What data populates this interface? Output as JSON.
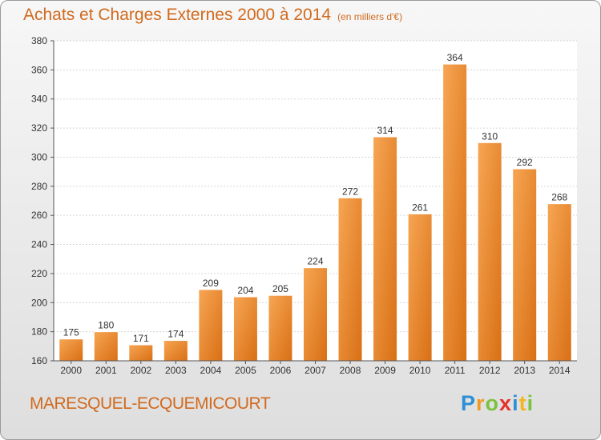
{
  "header": {
    "title": "Achats et Charges Externes 2000 à 2014",
    "unit": "(en milliers d'€)"
  },
  "footer": {
    "commune": "MARESQUEL-ECQUEMICOURT",
    "logo": [
      {
        "ch": "P",
        "color": "#2e8fd6"
      },
      {
        "ch": "r",
        "color": "#f29a1f"
      },
      {
        "ch": "o",
        "color": "#7cc242"
      },
      {
        "ch": "x",
        "color": "#e4322b"
      },
      {
        "ch": "i",
        "color": "#2e8fd6"
      },
      {
        "ch": "t",
        "color": "#f2b71f"
      },
      {
        "ch": "i",
        "color": "#7cc242"
      }
    ]
  },
  "chart_data": {
    "type": "bar",
    "categories": [
      "2000",
      "2001",
      "2002",
      "2003",
      "2004",
      "2005",
      "2006",
      "2007",
      "2008",
      "2009",
      "2010",
      "2011",
      "2012",
      "2013",
      "2014"
    ],
    "values": [
      175,
      180,
      171,
      174,
      209,
      204,
      205,
      224,
      272,
      314,
      261,
      364,
      310,
      292,
      268
    ],
    "ylim": [
      160,
      380
    ],
    "yticks": [
      160,
      180,
      200,
      220,
      240,
      260,
      280,
      300,
      320,
      340,
      360,
      380
    ],
    "grid": true,
    "bar_color": "#f08a2c"
  }
}
